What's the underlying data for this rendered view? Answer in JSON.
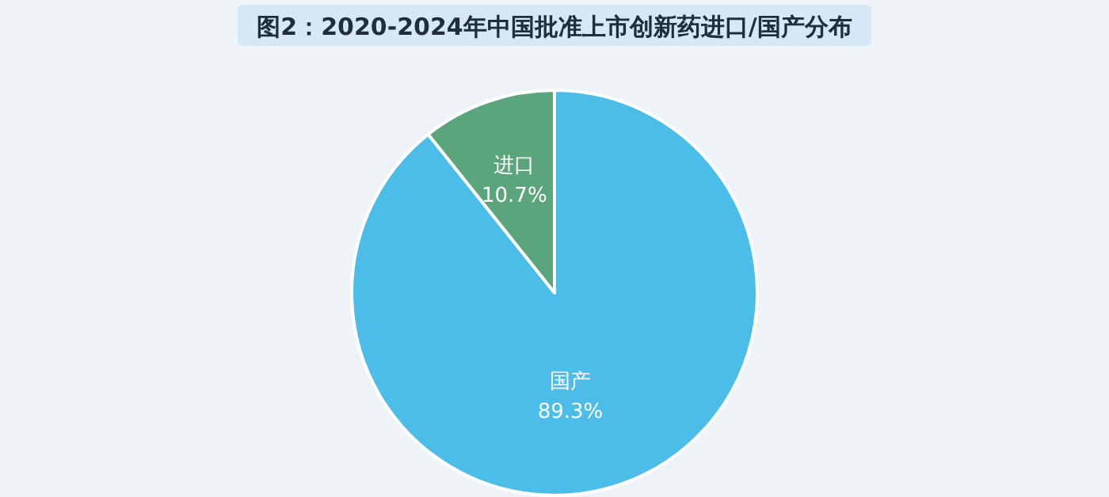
{
  "chart_data": {
    "type": "pie",
    "title": "图2：2020-2024年中国批准上市创新药进口/国产分布",
    "categories": [
      "国产",
      "进口"
    ],
    "values": [
      89.3,
      10.7
    ],
    "value_labels": [
      "89.3%",
      "10.7%"
    ],
    "colors": [
      "#4cbde9",
      "#5ba57c"
    ]
  }
}
